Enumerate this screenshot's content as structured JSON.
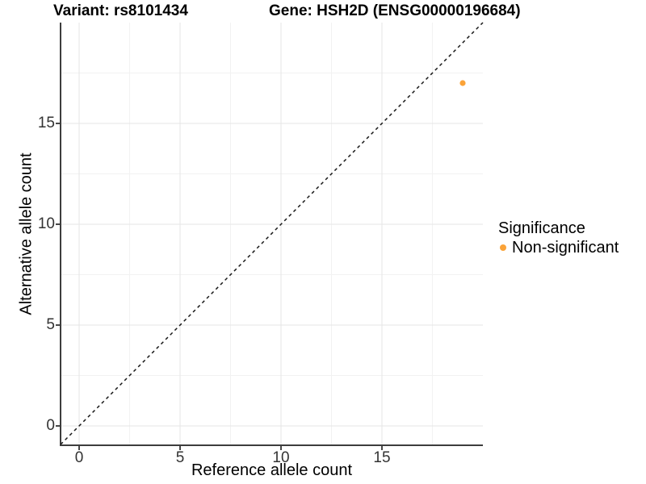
{
  "titles": {
    "variant": "Variant: rs8101434",
    "gene": "Gene: HSH2D (ENSG00000196684)"
  },
  "legend": {
    "title": "Significance",
    "items": [
      {
        "label": "Non-significant",
        "color": "#FBA338"
      }
    ]
  },
  "colors": {
    "background": "#ffffff",
    "point": "#FBA338",
    "grid_major": "#e6e6e6",
    "grid_minor": "#f2f2f2",
    "axis_line": "#3d3d3d",
    "tick": "#333333",
    "reference_line": "#1a1a1a"
  },
  "chart_data": {
    "type": "scatter",
    "title": "Variant: rs8101434 | Gene: HSH2D (ENSG00000196684)",
    "xlabel": "Reference allele count",
    "ylabel": "Alternative allele count",
    "xlim": [
      -0.92,
      20
    ],
    "ylim": [
      -0.96,
      20
    ],
    "x_breaks": [
      0,
      5,
      10,
      15
    ],
    "y_breaks": [
      0,
      5,
      10,
      15
    ],
    "x_minor_breaks": [
      2.5,
      7.5,
      12.5,
      17.5
    ],
    "y_minor_breaks": [
      2.5,
      7.5,
      12.5,
      17.5
    ],
    "grid": "major+minor",
    "legend_position": "right",
    "series": [
      {
        "name": "Non-significant",
        "color": "#FBA338",
        "points": [
          {
            "x": 19,
            "y": 17
          }
        ]
      }
    ],
    "reference_line": {
      "kind": "identity y=x",
      "style": "dashed",
      "from": [
        -0.92,
        -0.92
      ],
      "to": [
        20,
        20
      ]
    }
  }
}
